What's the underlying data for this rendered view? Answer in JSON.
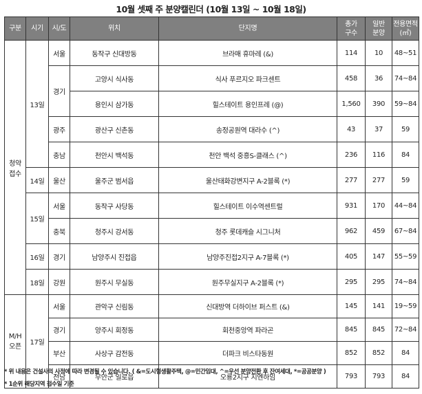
{
  "title": "10월 셋째 주 분양캘린더 (10월 13일 ~ 10월 18일)",
  "headers": [
    "구분",
    "시기",
    "시/도",
    "위치",
    "단지명",
    "총가\n구수",
    "일반\n분양",
    "전용면적\n(㎡)"
  ],
  "groups": [
    {
      "label": "청약\n접수",
      "dates": [
        {
          "date": "13일",
          "regions": [
            {
              "region": "서울",
              "rows": [
                {
                  "location": "동작구 신대방동",
                  "name": "브라매 휴마레 (&)",
                  "total": "114",
                  "general": "10",
                  "area": "48~51"
                }
              ]
            },
            {
              "region": "경기",
              "rows": [
                {
                  "location": "고양시 식사동",
                  "name": "식사 푸르지오 파크센트",
                  "total": "458",
                  "general": "36",
                  "area": "74~84"
                },
                {
                  "location": "용인시 삼가동",
                  "name": "힐스테이트 용인프레 (@)",
                  "total": "1,560",
                  "general": "390",
                  "area": "59~84"
                }
              ]
            },
            {
              "region": "광주",
              "rows": [
                {
                  "location": "광산구 신촌동",
                  "name": "송정공원역 대라수 (^)",
                  "total": "43",
                  "general": "37",
                  "area": "59"
                }
              ]
            },
            {
              "region": "충남",
              "rows": [
                {
                  "location": "천안시 백석동",
                  "name": "천안 백석 중흥S-클래스 (^)",
                  "total": "236",
                  "general": "116",
                  "area": "84"
                }
              ]
            }
          ]
        },
        {
          "date": "14일",
          "regions": [
            {
              "region": "울산",
              "rows": [
                {
                  "location": "울주군 범서읍",
                  "name": "울산태화강변지구 A-2블록 (*)",
                  "total": "277",
                  "general": "277",
                  "area": "59"
                }
              ]
            }
          ]
        },
        {
          "date": "15일",
          "regions": [
            {
              "region": "서울",
              "rows": [
                {
                  "location": "동작구 사당동",
                  "name": "힐스테이트 이수역센트럴",
                  "total": "931",
                  "general": "170",
                  "area": "44~84"
                }
              ]
            },
            {
              "region": "충북",
              "rows": [
                {
                  "location": "청주시 강서동",
                  "name": "청주 롯데캐슬 시그니처",
                  "total": "962",
                  "general": "459",
                  "area": "67~84"
                }
              ]
            }
          ]
        },
        {
          "date": "16일",
          "regions": [
            {
              "region": "경기",
              "rows": [
                {
                  "location": "남양주시 진접읍",
                  "name": "남양주진접2지구 A-7블록 (*)",
                  "total": "405",
                  "general": "147",
                  "area": "55~59"
                }
              ]
            }
          ]
        },
        {
          "date": "18일",
          "regions": [
            {
              "region": "강원",
              "rows": [
                {
                  "location": "원주시 무실동",
                  "name": "원주무실지구 A-2블록 (*)",
                  "total": "295",
                  "general": "295",
                  "area": "74~84"
                }
              ]
            }
          ]
        }
      ]
    },
    {
      "label": "M/H\n오픈",
      "dates": [
        {
          "date": "17일",
          "regions": [
            {
              "region": "서울",
              "rows": [
                {
                  "location": "관악구 신림동",
                  "name": "신대방역 더하이브 퍼스트 (&)",
                  "total": "145",
                  "general": "141",
                  "area": "19~59"
                }
              ]
            },
            {
              "region": "경기",
              "rows": [
                {
                  "location": "양주시 회정동",
                  "name": "회천중앙역 파라곤",
                  "total": "845",
                  "general": "845",
                  "area": "72~84"
                }
              ]
            },
            {
              "region": "부산",
              "rows": [
                {
                  "location": "사상구 감전동",
                  "name": "더파크 비스타동원",
                  "total": "852",
                  "general": "852",
                  "area": "84"
                }
              ]
            },
            {
              "region": "전남",
              "rows": [
                {
                  "location": "무안군 일로읍",
                  "name": "오룡2지구 지엔하임",
                  "total": "793",
                  "general": "793",
                  "area": "84"
                }
              ]
            }
          ]
        }
      ]
    }
  ],
  "notes": [
    "* 위 내용은 건설사의 사정에 따라 변경될 수 있습니다. ( &=도시형생활주택, @=민간임대, ^=우선 분양전환 후 잔여세대, *=공공분양 )",
    "* 1순위 해당지역 접수일 기준"
  ]
}
